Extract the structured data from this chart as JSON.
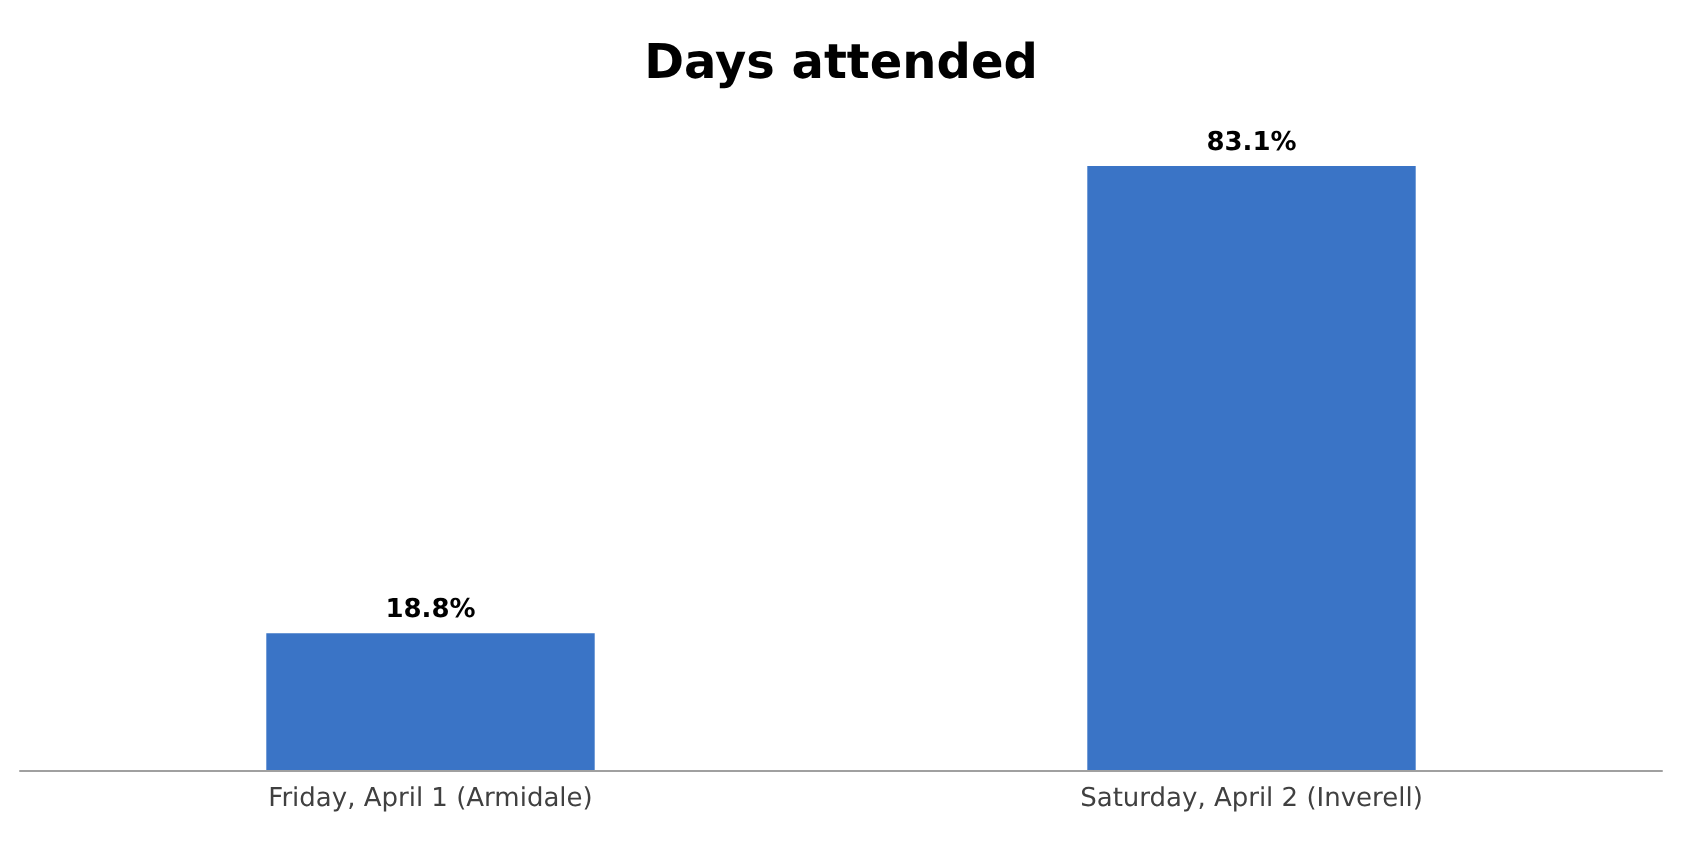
{
  "chart_data": {
    "type": "bar",
    "title": "Days attended",
    "categories": [
      "Friday, April 1 (Armidale)",
      "Saturday, April 2 (Inverell)"
    ],
    "values": [
      18.8,
      83.1
    ],
    "color": "#3a74c6",
    "value_labels": [
      "18.8%",
      "83.1%"
    ]
  }
}
